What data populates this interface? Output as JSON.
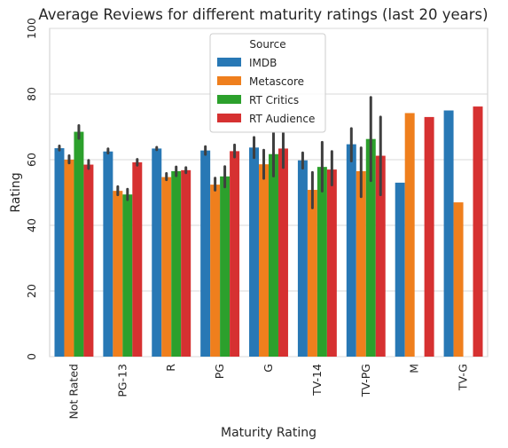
{
  "chart_data": {
    "type": "bar",
    "title": "Average Reviews for different maturity ratings (last 20 years)",
    "xlabel": "Maturity Rating",
    "ylabel": "Rating",
    "ylim": [
      0,
      100
    ],
    "yticks": [
      0,
      20,
      40,
      60,
      80,
      100
    ],
    "grid": true,
    "legend": {
      "title": "Source",
      "placement": "top-center"
    },
    "categories": [
      "Not Rated",
      "PG-13",
      "R",
      "PG",
      "G",
      "TV-14",
      "TV-PG",
      "M",
      "TV-G"
    ],
    "series": [
      {
        "name": "IMDB",
        "color": "#2878b5",
        "values": [
          63.5,
          62.5,
          63.4,
          62.8,
          63.7,
          59.8,
          64.7,
          53.0,
          75.0
        ],
        "error": [
          [
            62.9,
            64.2
          ],
          [
            62.0,
            63.3
          ],
          [
            63.0,
            63.8
          ],
          [
            61.6,
            64.0
          ],
          [
            60.6,
            66.8
          ],
          [
            57.4,
            62.1
          ],
          [
            59.6,
            69.5
          ],
          null,
          null
        ]
      },
      {
        "name": "Metascore",
        "color": "#ef7f1d",
        "values": [
          60.0,
          50.5,
          54.7,
          52.4,
          58.6,
          50.8,
          56.5,
          74.2,
          47.0
        ],
        "error": [
          [
            59.0,
            61.2
          ],
          [
            49.3,
            51.8
          ],
          [
            53.9,
            55.8
          ],
          [
            50.7,
            54.4
          ],
          [
            54.3,
            62.9
          ],
          [
            45.3,
            56.1
          ],
          [
            48.7,
            63.6
          ],
          null,
          null
        ]
      },
      {
        "name": "RT Critics",
        "color": "#2ca02c",
        "values": [
          68.5,
          49.4,
          56.5,
          54.9,
          61.7,
          57.8,
          66.3,
          null,
          null
        ],
        "error": [
          [
            66.5,
            70.4
          ],
          [
            47.8,
            51.0
          ],
          [
            55.1,
            57.8
          ],
          [
            51.7,
            57.9
          ],
          [
            55.0,
            68.1
          ],
          [
            50.4,
            65.3
          ],
          [
            53.6,
            79.0
          ],
          null,
          null
        ]
      },
      {
        "name": "RT Audience",
        "color": "#d63131",
        "values": [
          58.5,
          59.2,
          56.8,
          62.6,
          63.4,
          57.0,
          61.2,
          73.0,
          76.2
        ],
        "error": [
          [
            57.3,
            59.8
          ],
          [
            58.3,
            60.1
          ],
          [
            56.0,
            57.6
          ],
          [
            60.8,
            64.5
          ],
          [
            57.6,
            68.0
          ],
          [
            52.3,
            62.5
          ],
          [
            49.3,
            73.0
          ],
          null,
          null
        ]
      }
    ]
  }
}
